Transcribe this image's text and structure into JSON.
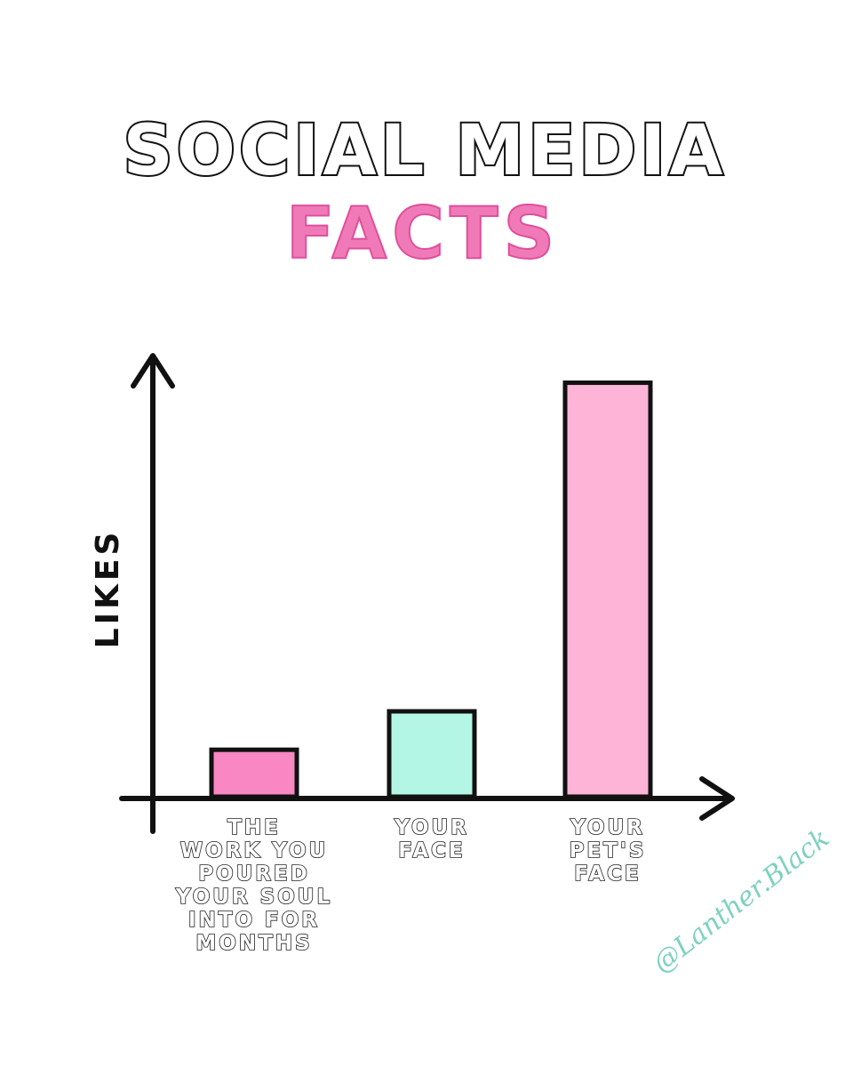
{
  "chart_data": {
    "type": "bar",
    "title": "SOCIAL MEDIA",
    "subtitle": "FACTS",
    "ylabel": "LIKES",
    "xlabel": "",
    "ylim": [
      0,
      100
    ],
    "categories": [
      "THE WORK YOU POURED YOUR SOUL INTO FOR MONTHS",
      "YOUR FACE",
      "YOUR PET'S FACE"
    ],
    "category_lines": [
      [
        "THE",
        "WORK YOU",
        "POURED",
        "YOUR SOUL",
        "INTO FOR",
        "MONTHS"
      ],
      [
        "YOUR",
        "FACE"
      ],
      [
        "YOUR",
        "PET'S",
        "FACE"
      ]
    ],
    "values": [
      11,
      20,
      97
    ],
    "bar_colors": [
      "#f887c4",
      "#b4f6e6",
      "#fdb4d6"
    ],
    "grid": false,
    "legend": "none"
  },
  "watermark": "@Lanther.Black",
  "colors": {
    "axis": "#111111",
    "title": "#111111",
    "subtitle": "#f07ab8",
    "watermark": "#7fd1bf"
  }
}
